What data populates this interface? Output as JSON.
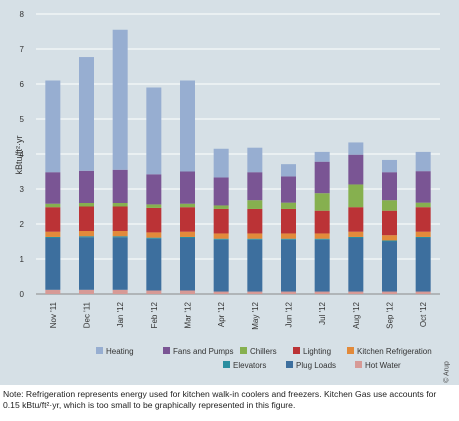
{
  "chart_data": {
    "type": "bar",
    "stacked": true,
    "title": "",
    "xlabel": "",
    "ylabel": "kBtu/ft²·yr",
    "ylim": [
      0,
      8
    ],
    "yticks": [
      "0",
      "1",
      "2",
      "3",
      "4",
      "5",
      "6",
      "7",
      "8"
    ],
    "grid": true,
    "legend_position": "bottom",
    "categories": [
      "Nov '11",
      "Dec '11",
      "Jan '12",
      "Feb '12",
      "Mar '12",
      "Apr '12",
      "May '12",
      "Jun '12",
      "Jul '12",
      "Aug '12",
      "Sep '12",
      "Oct '12"
    ],
    "series": [
      {
        "name": "Hot Water",
        "color": "#d79a96",
        "values": [
          0.12,
          0.12,
          0.12,
          0.1,
          0.1,
          0.07,
          0.07,
          0.07,
          0.07,
          0.07,
          0.07,
          0.07
        ]
      },
      {
        "name": "Plug Loads",
        "color": "#3d6f9e",
        "values": [
          1.48,
          1.5,
          1.5,
          1.48,
          1.5,
          1.48,
          1.48,
          1.48,
          1.48,
          1.53,
          1.43,
          1.53
        ]
      },
      {
        "name": "Elevators",
        "color": "#2a8ea0",
        "values": [
          0.03,
          0.03,
          0.03,
          0.03,
          0.03,
          0.03,
          0.03,
          0.03,
          0.03,
          0.03,
          0.03,
          0.03
        ]
      },
      {
        "name": "Kitchen Refrigeration",
        "color": "#e28a3a",
        "values": [
          0.15,
          0.15,
          0.15,
          0.15,
          0.15,
          0.15,
          0.15,
          0.15,
          0.15,
          0.15,
          0.15,
          0.15
        ]
      },
      {
        "name": "Lighting",
        "color": "#bb3336",
        "values": [
          0.7,
          0.7,
          0.7,
          0.7,
          0.7,
          0.7,
          0.7,
          0.7,
          0.65,
          0.7,
          0.7,
          0.7
        ]
      },
      {
        "name": "Chillers",
        "color": "#86b04f",
        "values": [
          0.1,
          0.1,
          0.1,
          0.1,
          0.1,
          0.1,
          0.25,
          0.18,
          0.5,
          0.65,
          0.3,
          0.13
        ]
      },
      {
        "name": "Fans and Pumps",
        "color": "#7a5594",
        "values": [
          0.9,
          0.92,
          0.95,
          0.86,
          0.92,
          0.8,
          0.8,
          0.75,
          0.9,
          0.85,
          0.8,
          0.9
        ]
      },
      {
        "name": "Heating",
        "color": "#97aed1",
        "values": [
          2.62,
          3.25,
          4.0,
          2.48,
          2.6,
          0.82,
          0.7,
          0.35,
          0.28,
          0.35,
          0.35,
          0.55
        ]
      }
    ],
    "legend": [
      [
        "Heating",
        "Fans and Pumps",
        "Chillers",
        "Lighting",
        "Kitchen Refrigeration"
      ],
      [
        "Elevators",
        "Plug Loads",
        "Hot Water"
      ]
    ]
  },
  "credit": "© Arup",
  "note": "Note: Refrigeration represents energy used for kitchen walk-in coolers and freezers. Kitchen Gas use accounts for 0.15 kBtu/ft²·yr, which is too small to be graphically represented in this figure."
}
